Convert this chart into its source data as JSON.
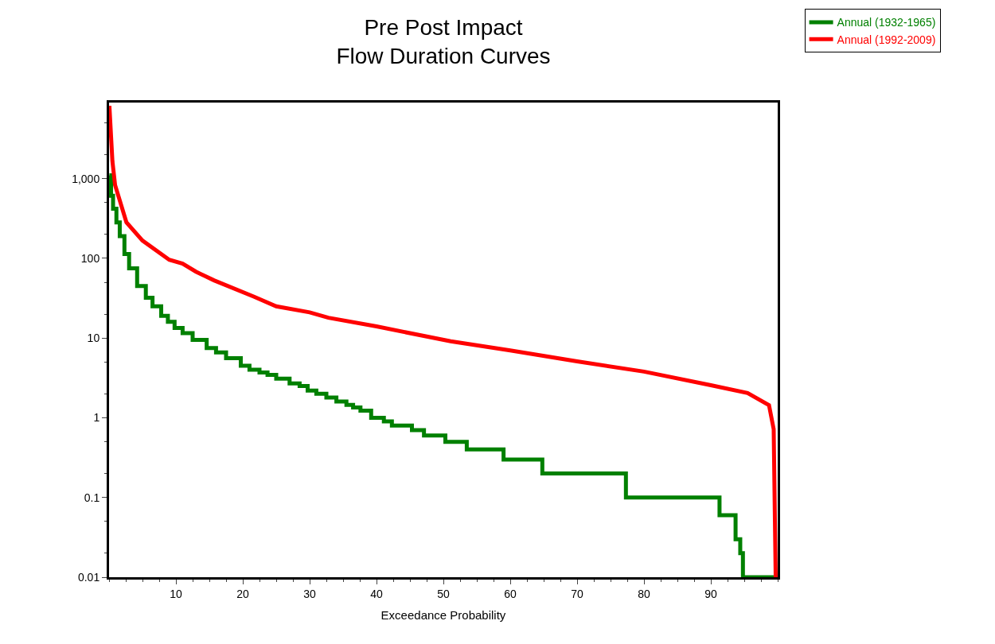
{
  "chart_data": {
    "type": "line",
    "title": "Pre Post Impact\nFlow Duration Curves",
    "xlabel": "Exceedance Probability",
    "log": "y",
    "legend": "top right",
    "marker": "none",
    "xlim": [
      0,
      100
    ],
    "xticks": [
      10,
      20,
      30,
      40,
      50,
      60,
      70,
      80,
      90
    ],
    "ylim": [
      0.01,
      9000
    ],
    "yticks": [
      0.01,
      0.1,
      1,
      10,
      100,
      {
        "value": 1000,
        "label": "1,000"
      }
    ],
    "series": [
      {
        "name": "Annual (1932-1965)",
        "color": "#008000",
        "type": "step",
        "x": [
          0.05,
          0.3,
          0.6,
          1.1,
          1.6,
          2.3,
          3.0,
          4.2,
          5.5,
          6.5,
          7.8,
          8.8,
          9.8,
          11.0,
          12.5,
          14.6,
          16.0,
          17.5,
          19.7,
          21.0,
          22.5,
          23.7,
          25.0,
          27.0,
          28.5,
          29.7,
          31.0,
          32.5,
          34.0,
          35.5,
          36.5,
          37.6,
          39.2,
          41.1,
          42.3,
          45.3,
          47.1,
          50.3,
          53.5,
          59.0,
          64.8,
          77.3,
          91.3,
          93.7,
          94.4,
          94.8,
          99.4
        ],
        "values": [
          1100,
          610,
          420,
          283,
          190,
          113,
          75,
          45,
          32,
          25,
          19,
          16,
          13.4,
          11.5,
          9.5,
          7.5,
          6.6,
          5.6,
          4.5,
          4.0,
          3.7,
          3.45,
          3.1,
          2.7,
          2.5,
          2.2,
          2.0,
          1.8,
          1.6,
          1.45,
          1.35,
          1.23,
          1.0,
          0.9,
          0.8,
          0.7,
          0.6,
          0.5,
          0.4,
          0.3,
          0.2,
          0.1,
          0.06,
          0.03,
          0.02,
          0.01,
          0.01
        ]
      },
      {
        "name": "Annual (1992-2009)",
        "color": "#ff0000",
        "x": [
          0.05,
          0.5,
          0.9,
          2.6,
          5.0,
          9.0,
          11.0,
          13.0,
          15.7,
          21.7,
          25.0,
          30.0,
          32.8,
          40.0,
          51.1,
          60.0,
          70.0,
          80.0,
          90.0,
          95.5,
          98.7,
          99.4,
          99.7
        ],
        "values": [
          8200,
          1660,
          830,
          283,
          167,
          96,
          86,
          68,
          53,
          33,
          25,
          21,
          18,
          14,
          9.1,
          7.0,
          5.1,
          3.8,
          2.56,
          2.04,
          1.44,
          0.72,
          0.01
        ]
      }
    ]
  }
}
